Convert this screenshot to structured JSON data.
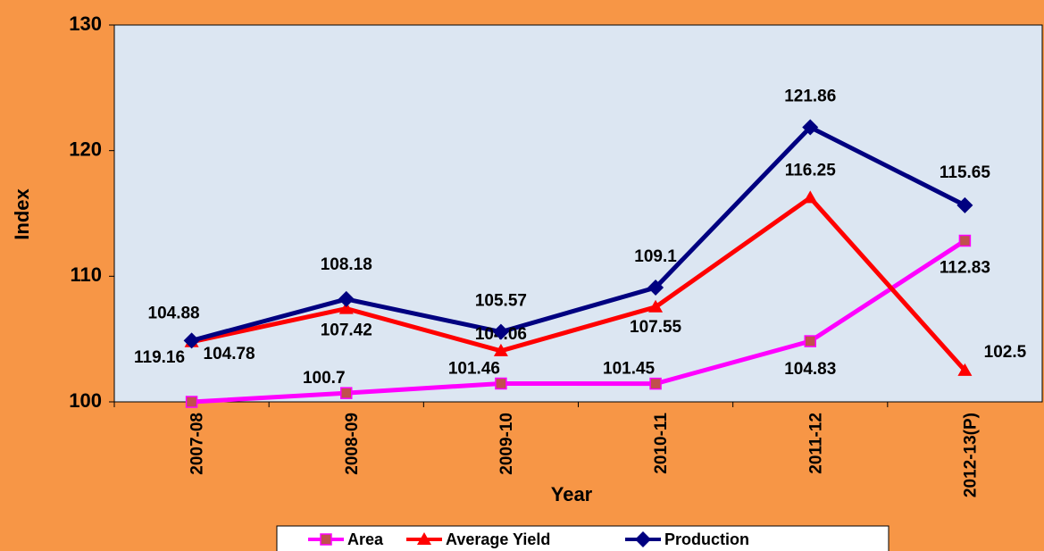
{
  "chart_data": {
    "type": "line",
    "x_label": "Year",
    "y_label": "Index",
    "categories": [
      "2007-08",
      "2008-09",
      "2009-10",
      "2010-11",
      "2011-12",
      "2012-13(P)"
    ],
    "series": [
      {
        "name": "Area",
        "color": "#ff00ff",
        "marker": "square",
        "values": [
          100,
          100.7,
          101.46,
          101.45,
          104.83,
          112.83
        ]
      },
      {
        "name": "Average Yield",
        "color": "#ff0000",
        "marker": "triangle",
        "values": [
          104.78,
          107.42,
          104.06,
          107.55,
          116.25,
          102.5
        ]
      },
      {
        "name": "Production",
        "color": "#000080",
        "marker": "diamond",
        "values": [
          104.88,
          108.18,
          105.57,
          109.1,
          121.86,
          115.65
        ]
      }
    ],
    "annotations": [
      "119.16"
    ],
    "ylim": [
      100,
      130
    ],
    "yticks": [
      100,
      110,
      120,
      130
    ],
    "legend": "bottom"
  }
}
